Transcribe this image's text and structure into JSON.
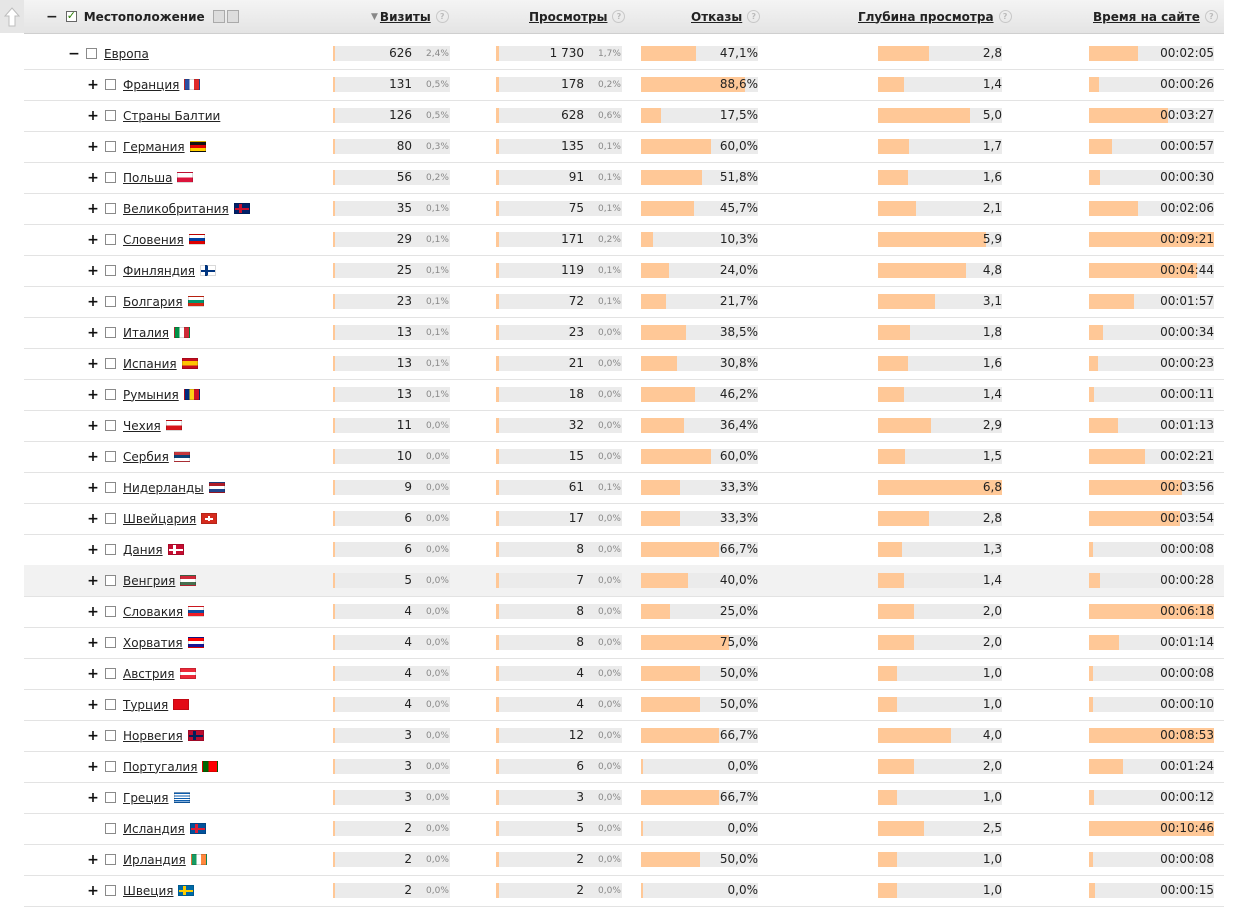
{
  "header": {
    "location": "Местоположение",
    "visits": "Визиты",
    "views": "Просмотры",
    "bounces": "Отказы",
    "depth": "Глубина просмотра",
    "time": "Время на сайте",
    "help_glyph": "?",
    "sort_glyph": "▼"
  },
  "icons": [
    "arrow-up-icon",
    "help-icon",
    "sort-desc-icon",
    "checkbox-icon",
    "expand-icon",
    "collapse-icon",
    "flag-icon"
  ],
  "colors": {
    "bar_fill": "#ffc897",
    "bar_bg": "#ebebeb"
  },
  "rows": [
    {
      "name": "Европа",
      "level": 0,
      "exp": "−",
      "flag": "",
      "visits": "626",
      "vp": "2,4%",
      "views": "1 730",
      "wp": "1,7%",
      "bounce": "47,1%",
      "bf": 0.471,
      "depth": "2,8",
      "df": 0.41,
      "time": "00:02:05",
      "tf": 0.39
    },
    {
      "name": "Франция",
      "level": 1,
      "exp": "+",
      "flag": "fr",
      "visits": "131",
      "vp": "0,5%",
      "views": "178",
      "wp": "0,2%",
      "bounce": "88,6%",
      "bf": 0.886,
      "depth": "1,4",
      "df": 0.21,
      "time": "00:00:26",
      "tf": 0.08
    },
    {
      "name": "Страны Балтии",
      "level": 1,
      "exp": "+",
      "flag": "",
      "visits": "126",
      "vp": "0,5%",
      "views": "628",
      "wp": "0,6%",
      "bounce": "17,5%",
      "bf": 0.175,
      "depth": "5,0",
      "df": 0.74,
      "time": "00:03:27",
      "tf": 0.63
    },
    {
      "name": "Германия",
      "level": 1,
      "exp": "+",
      "flag": "de",
      "visits": "80",
      "vp": "0,3%",
      "views": "135",
      "wp": "0,1%",
      "bounce": "60,0%",
      "bf": 0.6,
      "depth": "1,7",
      "df": 0.25,
      "time": "00:00:57",
      "tf": 0.18
    },
    {
      "name": "Польша",
      "level": 1,
      "exp": "+",
      "flag": "pl",
      "visits": "56",
      "vp": "0,2%",
      "views": "91",
      "wp": "0,1%",
      "bounce": "51,8%",
      "bf": 0.518,
      "depth": "1,6",
      "df": 0.24,
      "time": "00:00:30",
      "tf": 0.09
    },
    {
      "name": "Великобритания",
      "level": 1,
      "exp": "+",
      "flag": "gb",
      "visits": "35",
      "vp": "0,1%",
      "views": "75",
      "wp": "0,1%",
      "bounce": "45,7%",
      "bf": 0.457,
      "depth": "2,1",
      "df": 0.31,
      "time": "00:02:06",
      "tf": 0.39
    },
    {
      "name": "Словения",
      "level": 1,
      "exp": "+",
      "flag": "si",
      "visits": "29",
      "vp": "0,1%",
      "views": "171",
      "wp": "0,2%",
      "bounce": "10,3%",
      "bf": 0.103,
      "depth": "5,9",
      "df": 0.87,
      "time": "00:09:21",
      "tf": 1.0
    },
    {
      "name": "Финляндия",
      "level": 1,
      "exp": "+",
      "flag": "fi",
      "visits": "25",
      "vp": "0,1%",
      "views": "119",
      "wp": "0,1%",
      "bounce": "24,0%",
      "bf": 0.24,
      "depth": "4,8",
      "df": 0.71,
      "time": "00:04:44",
      "tf": 0.86
    },
    {
      "name": "Болгария",
      "level": 1,
      "exp": "+",
      "flag": "bg",
      "visits": "23",
      "vp": "0,1%",
      "views": "72",
      "wp": "0,1%",
      "bounce": "21,7%",
      "bf": 0.217,
      "depth": "3,1",
      "df": 0.46,
      "time": "00:01:57",
      "tf": 0.36
    },
    {
      "name": "Италия",
      "level": 1,
      "exp": "+",
      "flag": "it",
      "visits": "13",
      "vp": "0,1%",
      "views": "23",
      "wp": "0,0%",
      "bounce": "38,5%",
      "bf": 0.385,
      "depth": "1,8",
      "df": 0.26,
      "time": "00:00:34",
      "tf": 0.11
    },
    {
      "name": "Испания",
      "level": 1,
      "exp": "+",
      "flag": "es",
      "visits": "13",
      "vp": "0,1%",
      "views": "21",
      "wp": "0,0%",
      "bounce": "30,8%",
      "bf": 0.308,
      "depth": "1,6",
      "df": 0.24,
      "time": "00:00:23",
      "tf": 0.07
    },
    {
      "name": "Румыния",
      "level": 1,
      "exp": "+",
      "flag": "ro",
      "visits": "13",
      "vp": "0,1%",
      "views": "18",
      "wp": "0,0%",
      "bounce": "46,2%",
      "bf": 0.462,
      "depth": "1,4",
      "df": 0.21,
      "time": "00:00:11",
      "tf": 0.04
    },
    {
      "name": "Чехия",
      "level": 1,
      "exp": "+",
      "flag": "cz",
      "visits": "11",
      "vp": "0,0%",
      "views": "32",
      "wp": "0,0%",
      "bounce": "36,4%",
      "bf": 0.364,
      "depth": "2,9",
      "df": 0.43,
      "time": "00:01:13",
      "tf": 0.23
    },
    {
      "name": "Сербия",
      "level": 1,
      "exp": "+",
      "flag": "rs",
      "visits": "10",
      "vp": "0,0%",
      "views": "15",
      "wp": "0,0%",
      "bounce": "60,0%",
      "bf": 0.6,
      "depth": "1,5",
      "df": 0.22,
      "time": "00:02:21",
      "tf": 0.45
    },
    {
      "name": "Нидерланды",
      "level": 1,
      "exp": "+",
      "flag": "nl",
      "visits": "9",
      "vp": "0,0%",
      "views": "61",
      "wp": "0,1%",
      "bounce": "33,3%",
      "bf": 0.333,
      "depth": "6,8",
      "df": 1.0,
      "time": "00:03:56",
      "tf": 0.74
    },
    {
      "name": "Швейцария",
      "level": 1,
      "exp": "+",
      "flag": "ch",
      "visits": "6",
      "vp": "0,0%",
      "views": "17",
      "wp": "0,0%",
      "bounce": "33,3%",
      "bf": 0.333,
      "depth": "2,8",
      "df": 0.41,
      "time": "00:03:54",
      "tf": 0.73
    },
    {
      "name": "Дания",
      "level": 1,
      "exp": "+",
      "flag": "dk",
      "visits": "6",
      "vp": "0,0%",
      "views": "8",
      "wp": "0,0%",
      "bounce": "66,7%",
      "bf": 0.667,
      "depth": "1,3",
      "df": 0.19,
      "time": "00:00:08",
      "tf": 0.03
    },
    {
      "name": "Венгрия",
      "level": 1,
      "exp": "+",
      "flag": "hu",
      "visits": "5",
      "vp": "0,0%",
      "views": "7",
      "wp": "0,0%",
      "bounce": "40,0%",
      "bf": 0.4,
      "depth": "1,4",
      "df": 0.21,
      "time": "00:00:28",
      "tf": 0.09,
      "hl": true
    },
    {
      "name": "Словакия",
      "level": 1,
      "exp": "+",
      "flag": "sk",
      "visits": "4",
      "vp": "0,0%",
      "views": "8",
      "wp": "0,0%",
      "bounce": "25,0%",
      "bf": 0.25,
      "depth": "2,0",
      "df": 0.29,
      "time": "00:06:18",
      "tf": 1.0
    },
    {
      "name": "Хорватия",
      "level": 1,
      "exp": "+",
      "flag": "hr",
      "visits": "4",
      "vp": "0,0%",
      "views": "8",
      "wp": "0,0%",
      "bounce": "75,0%",
      "bf": 0.75,
      "depth": "2,0",
      "df": 0.29,
      "time": "00:01:14",
      "tf": 0.24
    },
    {
      "name": "Австрия",
      "level": 1,
      "exp": "+",
      "flag": "at",
      "visits": "4",
      "vp": "0,0%",
      "views": "4",
      "wp": "0,0%",
      "bounce": "50,0%",
      "bf": 0.5,
      "depth": "1,0",
      "df": 0.15,
      "time": "00:00:08",
      "tf": 0.03
    },
    {
      "name": "Турция",
      "level": 1,
      "exp": "+",
      "flag": "tr",
      "visits": "4",
      "vp": "0,0%",
      "views": "4",
      "wp": "0,0%",
      "bounce": "50,0%",
      "bf": 0.5,
      "depth": "1,0",
      "df": 0.15,
      "time": "00:00:10",
      "tf": 0.03
    },
    {
      "name": "Норвегия",
      "level": 1,
      "exp": "+",
      "flag": "no",
      "visits": "3",
      "vp": "0,0%",
      "views": "12",
      "wp": "0,0%",
      "bounce": "66,7%",
      "bf": 0.667,
      "depth": "4,0",
      "df": 0.59,
      "time": "00:08:53",
      "tf": 1.0
    },
    {
      "name": "Португалия",
      "level": 1,
      "exp": "+",
      "flag": "pt",
      "visits": "3",
      "vp": "0,0%",
      "views": "6",
      "wp": "0,0%",
      "bounce": "0,0%",
      "bf": 0.0,
      "depth": "2,0",
      "df": 0.29,
      "time": "00:01:24",
      "tf": 0.27
    },
    {
      "name": "Греция",
      "level": 1,
      "exp": "+",
      "flag": "gr",
      "visits": "3",
      "vp": "0,0%",
      "views": "3",
      "wp": "0,0%",
      "bounce": "66,7%",
      "bf": 0.667,
      "depth": "1,0",
      "df": 0.15,
      "time": "00:00:12",
      "tf": 0.04
    },
    {
      "name": "Исландия",
      "level": 1,
      "exp": "",
      "flag": "is",
      "visits": "2",
      "vp": "0,0%",
      "views": "5",
      "wp": "0,0%",
      "bounce": "0,0%",
      "bf": 0.0,
      "depth": "2,5",
      "df": 0.37,
      "time": "00:10:46",
      "tf": 1.0
    },
    {
      "name": "Ирландия",
      "level": 1,
      "exp": "+",
      "flag": "ie",
      "visits": "2",
      "vp": "0,0%",
      "views": "2",
      "wp": "0,0%",
      "bounce": "50,0%",
      "bf": 0.5,
      "depth": "1,0",
      "df": 0.15,
      "time": "00:00:08",
      "tf": 0.03
    },
    {
      "name": "Швеция",
      "level": 1,
      "exp": "+",
      "flag": "se",
      "visits": "2",
      "vp": "0,0%",
      "views": "2",
      "wp": "0,0%",
      "bounce": "0,0%",
      "bf": 0.0,
      "depth": "1,0",
      "df": 0.15,
      "time": "00:00:15",
      "tf": 0.05
    }
  ]
}
